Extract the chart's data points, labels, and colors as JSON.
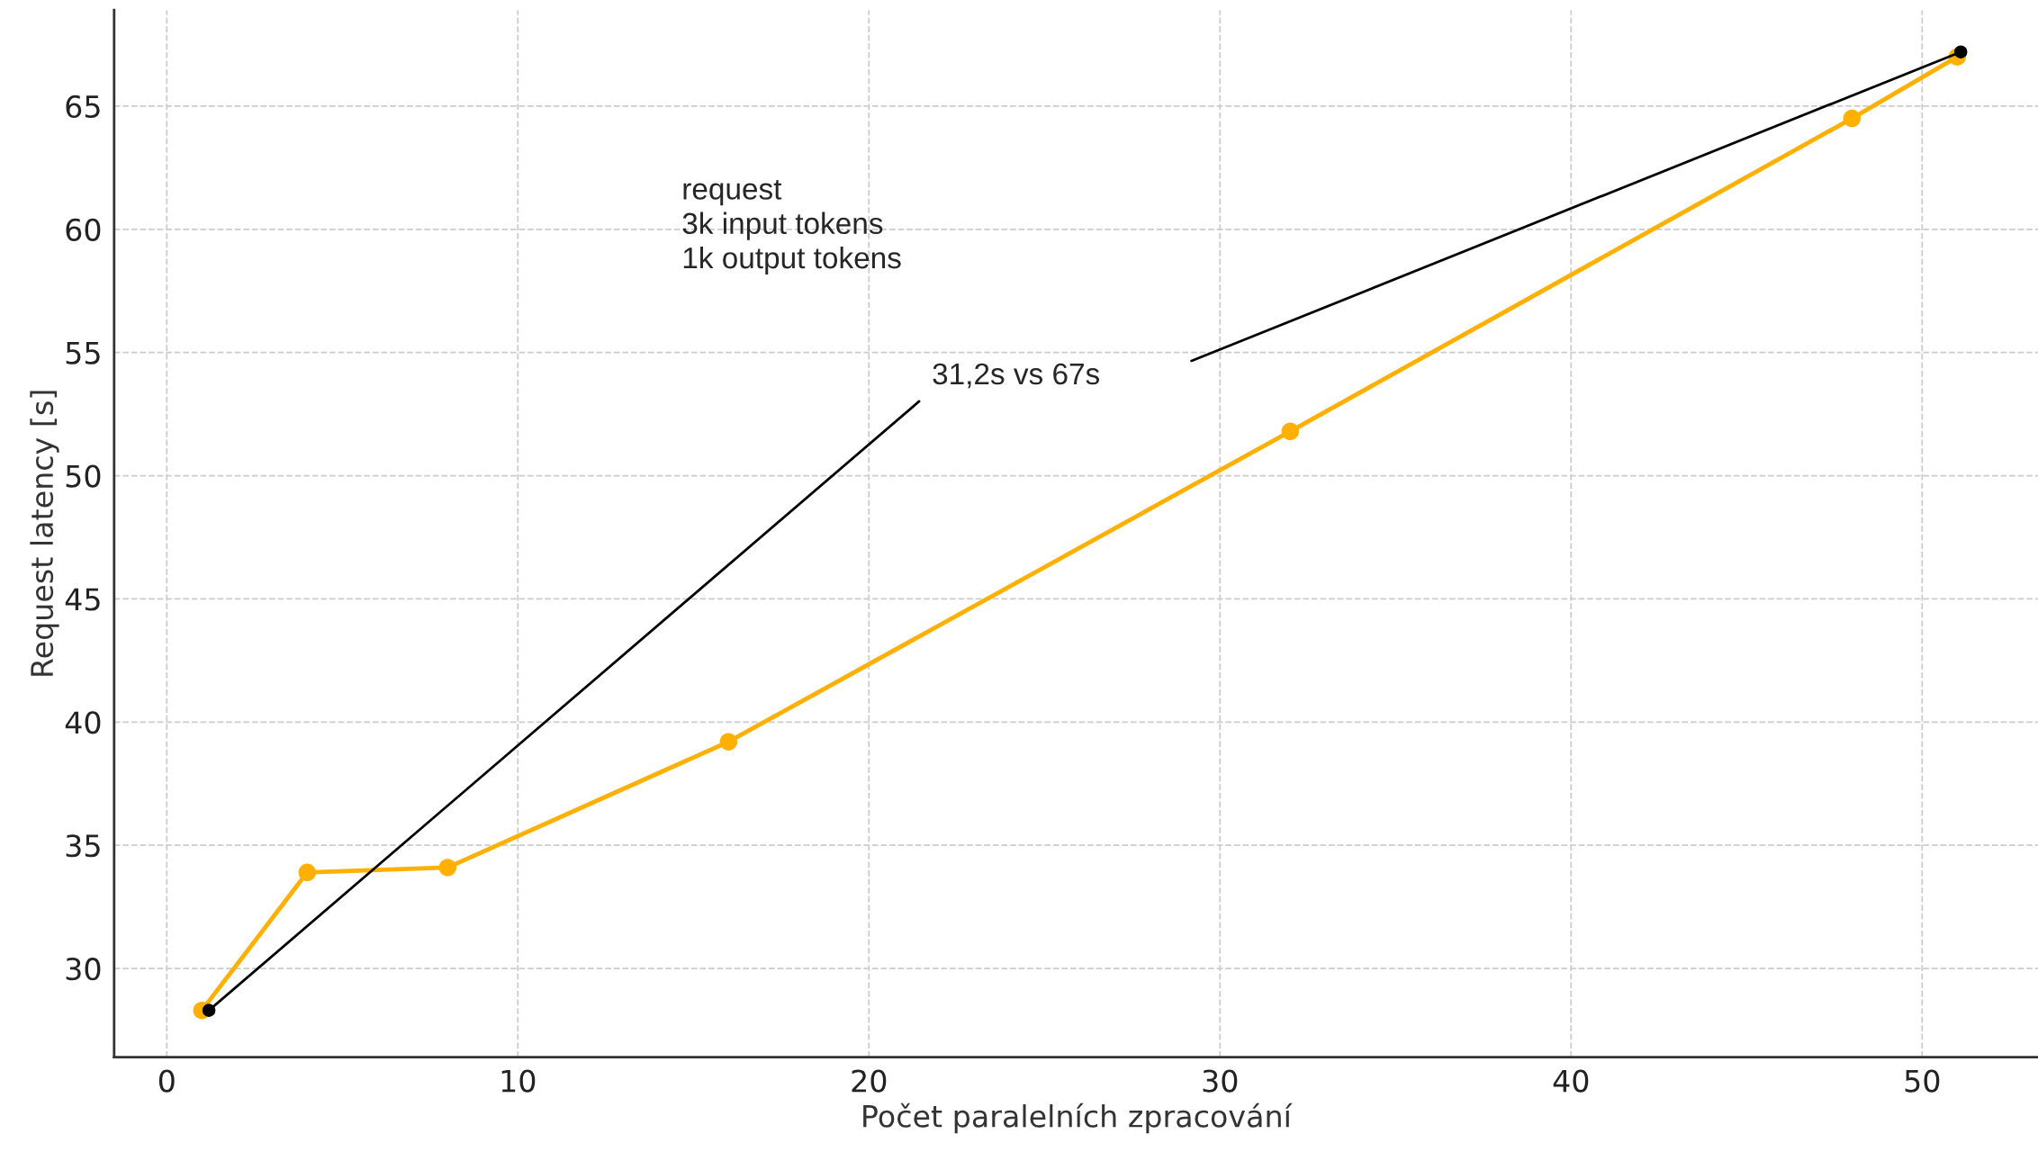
{
  "chart_data": {
    "type": "line",
    "xlabel": "Počet paralelních zpracování",
    "ylabel": "Request latency [s]",
    "x": [
      1,
      4,
      8,
      16,
      32,
      48,
      51
    ],
    "series": [
      {
        "color": "#ffb000",
        "marker": "circle",
        "values": [
          28.3,
          33.9,
          34.1,
          39.2,
          51.8,
          64.5,
          67.0
        ]
      },
      {
        "type": "scatter",
        "color": "#000000",
        "marker": "circle",
        "x": [
          1.2,
          51.1
        ],
        "values": [
          28.3,
          67.2
        ]
      }
    ],
    "annotations": [
      "request\n3k input tokens\n1k output tokens",
      "31,2s vs 67s"
    ],
    "xlim": [
      -1.5,
      53.3
    ],
    "ylim": [
      26.4,
      68.9
    ],
    "xticks": [
      0,
      10,
      20,
      30,
      40,
      50
    ],
    "yticks": [
      30,
      35,
      40,
      45,
      50,
      55,
      60,
      65
    ],
    "grid": true,
    "line_style": "solid"
  }
}
